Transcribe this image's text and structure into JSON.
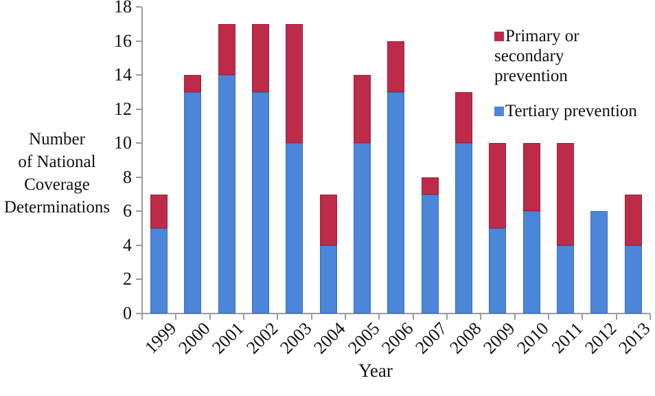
{
  "figure": {
    "y_axis_title_lines": [
      "Number",
      "of National",
      "Coverage",
      "Determinations"
    ],
    "axis_color": "#9a9a9a",
    "background_color": "#ffffff"
  },
  "legend": {
    "position": "upper right",
    "items": [
      {
        "label": "Primary or secondary prevention",
        "color": "#be2b48"
      },
      {
        "label": "Tertiary prevention",
        "color": "#4c86d8"
      }
    ]
  },
  "chart_data": {
    "type": "bar",
    "stacked": true,
    "title": "",
    "xlabel": "Year",
    "ylabel": "Number of National Coverage Determinations",
    "categories": [
      "1999",
      "2000",
      "2001",
      "2002",
      "2003",
      "2004",
      "2005",
      "2006",
      "2007",
      "2008",
      "2009",
      "2010",
      "2011",
      "2012",
      "2013"
    ],
    "series": [
      {
        "name": "Tertiary prevention",
        "color": "#4c86d8",
        "edge_color": "#3a6cbe",
        "values": [
          5,
          13,
          14,
          13,
          10,
          4,
          10,
          13,
          7,
          10,
          5,
          6,
          4,
          6,
          4
        ]
      },
      {
        "name": "Primary or secondary prevention",
        "color": "#be2b48",
        "edge_color": "#9e1f39",
        "values": [
          2,
          1,
          3,
          4,
          7,
          3,
          4,
          3,
          1,
          3,
          5,
          4,
          6,
          0,
          3
        ]
      }
    ],
    "totals": [
      7,
      14,
      17,
      17,
      17,
      7,
      14,
      16,
      8,
      13,
      10,
      10,
      10,
      6,
      7
    ],
    "ylim": [
      0,
      18
    ],
    "yticks": [
      0,
      2,
      4,
      6,
      8,
      10,
      12,
      14,
      16,
      18
    ],
    "xticks_rotation_deg": -45,
    "grid": false,
    "legend_position": "upper right"
  }
}
